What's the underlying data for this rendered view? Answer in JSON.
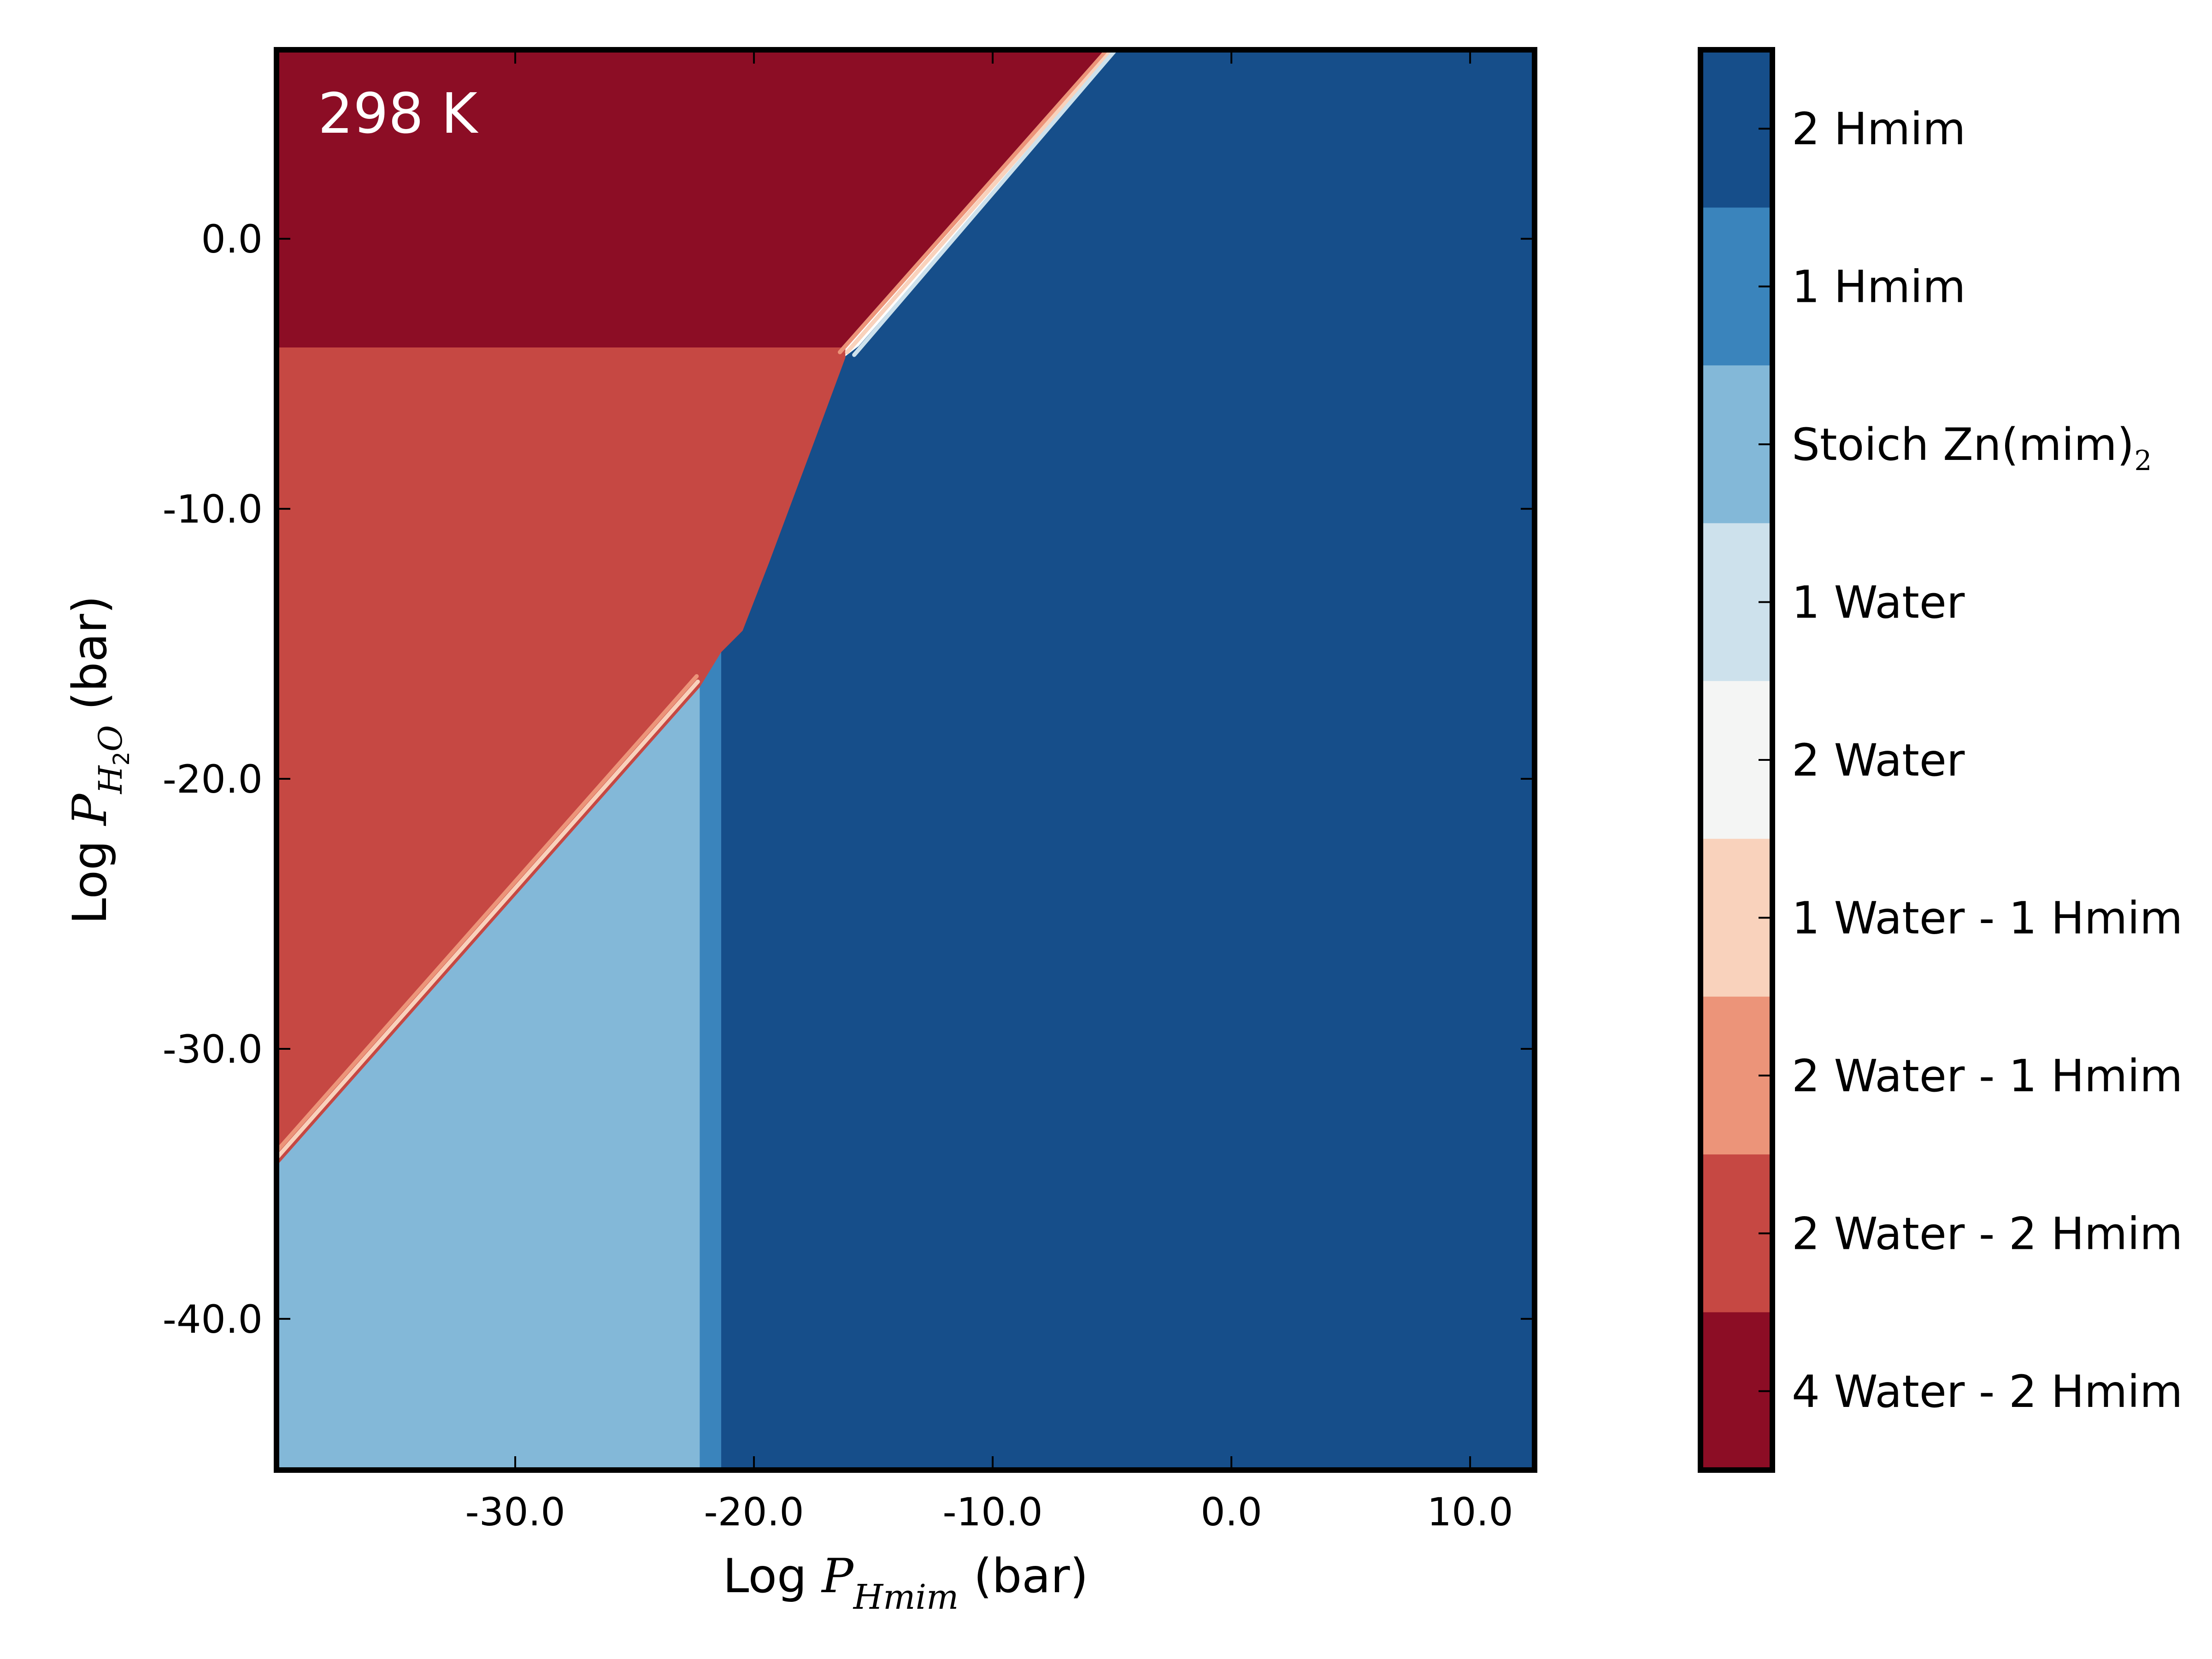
{
  "chart_data": {
    "type": "heatmap",
    "panel_label": "298 K",
    "xlabel": {
      "prefix": "Log ",
      "var": "P",
      "sub": "Hmim",
      "suffix": " (bar)"
    },
    "ylabel": {
      "prefix": "Log ",
      "var": "P",
      "sub": "H",
      "sub2": "2",
      "sub3": "O",
      "suffix": " (bar)"
    },
    "xlim": [
      -40.0,
      12.7
    ],
    "ylim": [
      -45.6,
      7.0
    ],
    "xticks": [
      -30.0,
      -20.0,
      -10.0,
      0.0,
      10.0
    ],
    "xtick_labels": [
      "-30.0",
      "-20.0",
      "-10.0",
      "0.0",
      "10.0"
    ],
    "yticks": [
      0.0,
      -10.0,
      -20.0,
      -30.0,
      -40.0
    ],
    "ytick_labels": [
      "0.0",
      "-10.0",
      "-20.0",
      "-30.0",
      "-40.0"
    ],
    "colorbar": [
      {
        "label": "2 Hmim",
        "sub": "",
        "color": "#164e8a"
      },
      {
        "label": "1 Hmim",
        "sub": "",
        "color": "#3a84bc"
      },
      {
        "label": "Stoich Zn(mim)",
        "sub": "2",
        "color": "#83b8d8"
      },
      {
        "label": "1 Water",
        "sub": "",
        "color": "#cde1ec"
      },
      {
        "label": "2 Water",
        "sub": "",
        "color": "#f4f5f4"
      },
      {
        "label": "1 Water - 1 Hmim",
        "sub": "",
        "color": "#f9d2bc"
      },
      {
        "label": "2 Water - 1 Hmim",
        "sub": "",
        "color": "#ec9479"
      },
      {
        "label": "2 Water - 2 Hmim",
        "sub": "",
        "color": "#c64843"
      },
      {
        "label": "4 Water - 2 Hmim",
        "sub": "",
        "color": "#8c0d25"
      }
    ],
    "regions": [
      {
        "phase": "2 Hmim",
        "polygon": [
          [
            -4.8,
            7.0
          ],
          [
            12.7,
            7.0
          ],
          [
            12.7,
            -45.6
          ],
          [
            -21.4,
            -45.6
          ],
          [
            -21.4,
            -15.3
          ],
          [
            -20.5,
            -14.5
          ],
          [
            -19.4,
            -12.0
          ],
          [
            -17.5,
            -7.5
          ],
          [
            -16.2,
            -4.4
          ],
          [
            -15.6,
            -4.0
          ]
        ]
      },
      {
        "phase": "1 Hmim",
        "polygon": [
          [
            -22.3,
            -16.6
          ],
          [
            -21.4,
            -15.3
          ],
          [
            -21.4,
            -45.6
          ],
          [
            -22.3,
            -45.6
          ]
        ]
      },
      {
        "phase": "Stoich Zn(mim)2",
        "polygon": [
          [
            -40.0,
            -34.3
          ],
          [
            -22.3,
            -16.6
          ],
          [
            -22.3,
            -45.6
          ],
          [
            -40.0,
            -45.6
          ]
        ]
      },
      {
        "phase": "2 Water - 2 Hmim",
        "polygon": [
          [
            -40.0,
            -4.0
          ],
          [
            -16.2,
            -4.0
          ],
          [
            -16.2,
            -4.4
          ],
          [
            -17.5,
            -7.5
          ],
          [
            -19.4,
            -12.0
          ],
          [
            -20.5,
            -14.5
          ],
          [
            -21.4,
            -15.3
          ],
          [
            -22.3,
            -16.6
          ],
          [
            -40.0,
            -34.3
          ]
        ]
      },
      {
        "phase": "4 Water - 2 Hmim",
        "polygon": [
          [
            -40.0,
            7.0
          ],
          [
            -5.1,
            7.0
          ],
          [
            -16.2,
            -4.0
          ],
          [
            -40.0,
            -4.0
          ]
        ]
      }
    ],
    "boundary_bands": [
      {
        "phase": "2 Water - 1 Hmim",
        "points": [
          [
            -40.0,
            -33.8
          ],
          [
            -22.4,
            -16.2
          ]
        ]
      },
      {
        "phase": "1 Water - 1 Hmim",
        "points": [
          [
            -40.0,
            -34.05
          ],
          [
            -22.35,
            -16.4
          ]
        ]
      },
      {
        "phase": "2 Water - 1 Hmim",
        "points": [
          [
            -16.4,
            -4.2
          ],
          [
            -5.2,
            7.0
          ]
        ]
      },
      {
        "phase": "1 Water - 1 Hmim",
        "points": [
          [
            -16.1,
            -4.2
          ],
          [
            -5.0,
            7.0
          ]
        ]
      },
      {
        "phase": "1 Water",
        "points": [
          [
            -15.8,
            -4.3
          ],
          [
            -4.85,
            7.0
          ]
        ]
      }
    ]
  }
}
